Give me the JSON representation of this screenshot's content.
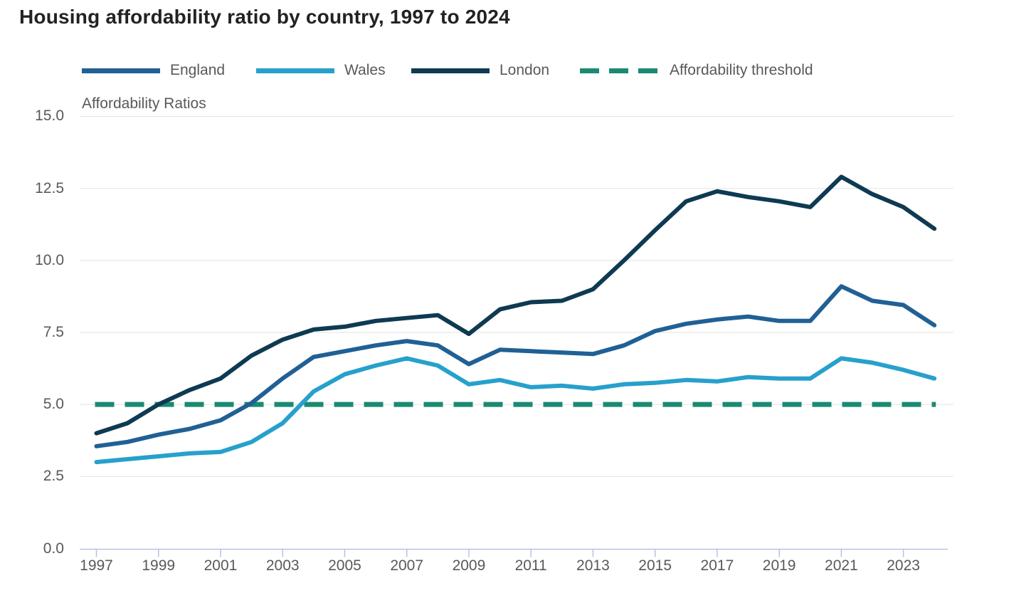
{
  "chart_data": {
    "type": "line",
    "title": "Housing affordability ratio by country, 1997 to 2024",
    "y_axis_title": "Affordability Ratios",
    "x": [
      1997,
      1998,
      1999,
      2000,
      2001,
      2002,
      2003,
      2004,
      2005,
      2006,
      2007,
      2008,
      2009,
      2010,
      2011,
      2012,
      2013,
      2014,
      2015,
      2016,
      2017,
      2018,
      2019,
      2020,
      2021,
      2022,
      2023,
      2024
    ],
    "x_tick_labels": [
      "1997",
      "1999",
      "2001",
      "2003",
      "2005",
      "2007",
      "2009",
      "2011",
      "2013",
      "2015",
      "2017",
      "2019",
      "2021",
      "2023"
    ],
    "y_tick_labels": [
      "0.0",
      "2.5",
      "5.0",
      "7.5",
      "10.0",
      "12.5",
      "15.0"
    ],
    "ylim": [
      0,
      15
    ],
    "grid": true,
    "legend_position": "top",
    "series": [
      {
        "name": "England",
        "color": "#206095",
        "values": [
          3.55,
          3.7,
          3.95,
          4.15,
          4.45,
          5.05,
          5.9,
          6.65,
          6.85,
          7.05,
          7.2,
          7.05,
          6.4,
          6.9,
          6.85,
          6.8,
          6.75,
          7.05,
          7.55,
          7.8,
          7.95,
          8.05,
          7.9,
          7.9,
          9.1,
          8.6,
          8.45,
          7.75
        ]
      },
      {
        "name": "Wales",
        "color": "#27A0CC",
        "values": [
          3.0,
          3.1,
          3.2,
          3.3,
          3.35,
          3.7,
          4.35,
          5.45,
          6.05,
          6.35,
          6.6,
          6.35,
          5.7,
          5.85,
          5.6,
          5.65,
          5.55,
          5.7,
          5.75,
          5.85,
          5.8,
          5.95,
          5.9,
          5.9,
          6.6,
          6.45,
          6.2,
          5.9
        ]
      },
      {
        "name": "London",
        "color": "#0E3A52",
        "values": [
          4.0,
          4.35,
          5.0,
          5.5,
          5.9,
          6.7,
          7.25,
          7.6,
          7.7,
          7.9,
          8.0,
          8.1,
          7.45,
          8.3,
          8.55,
          8.6,
          9.0,
          10.0,
          11.05,
          12.05,
          12.4,
          12.2,
          12.05,
          11.85,
          12.9,
          12.3,
          11.85,
          11.1
        ]
      }
    ],
    "threshold": {
      "label": "Affordability threshold",
      "value": 5.0,
      "color": "#1A8A72",
      "dashed": true
    },
    "colors": {
      "grid": "#e2e2e2",
      "axis": "#b5c3e1",
      "tick_text": "#595959",
      "title_text": "#222222"
    }
  }
}
